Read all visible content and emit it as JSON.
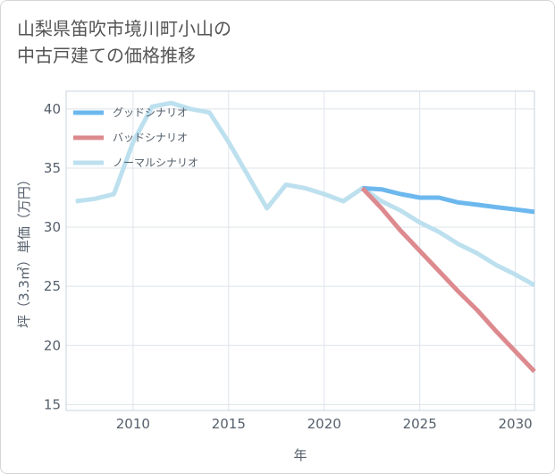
{
  "title_lines": [
    "山梨県笛吹市境川町小山の",
    "中古戸建ての価格推移"
  ],
  "chart_data": {
    "type": "line",
    "title": "山梨県笛吹市境川町小山の中古戸建ての価格推移",
    "xlabel": "年",
    "ylabel": "坪（3.3㎡）単価（万円）",
    "xlim": [
      2006.5,
      2031
    ],
    "ylim": [
      14.5,
      41.5
    ],
    "xticks": [
      2010,
      2015,
      2020,
      2025,
      2030
    ],
    "yticks": [
      15,
      20,
      25,
      30,
      35,
      40
    ],
    "grid": true,
    "legend_position": "top-left",
    "series": [
      {
        "name": "グッドシナリオ",
        "color": "#6cb8ee",
        "x": [
          2022,
          2023,
          2024,
          2025,
          2026,
          2027,
          2028,
          2029,
          2030,
          2031
        ],
        "values": [
          33.3,
          33.2,
          32.8,
          32.5,
          32.5,
          32.1,
          31.9,
          31.7,
          31.5,
          31.3
        ]
      },
      {
        "name": "バッドシナリオ",
        "color": "#dd8a8f",
        "x": [
          2022,
          2023,
          2024,
          2025,
          2026,
          2027,
          2028,
          2029,
          2030,
          2031
        ],
        "values": [
          33.3,
          31.6,
          29.7,
          28.0,
          26.3,
          24.6,
          23.0,
          21.2,
          19.5,
          17.8
        ]
      },
      {
        "name": "ノーマルシナリオ",
        "color": "#bde0ef",
        "x": [
          2007,
          2008,
          2009,
          2010,
          2011,
          2012,
          2013,
          2014,
          2015,
          2016,
          2017,
          2018,
          2019,
          2020,
          2021,
          2022,
          2023,
          2024,
          2025,
          2026,
          2027,
          2028,
          2029,
          2030,
          2031
        ],
        "values": [
          32.2,
          32.4,
          32.8,
          37.2,
          40.2,
          40.5,
          40.0,
          39.7,
          37.2,
          34.4,
          31.6,
          33.6,
          33.3,
          32.8,
          32.2,
          33.3,
          32.2,
          31.4,
          30.4,
          29.6,
          28.6,
          27.8,
          26.8,
          26.0,
          25.1
        ]
      }
    ]
  }
}
